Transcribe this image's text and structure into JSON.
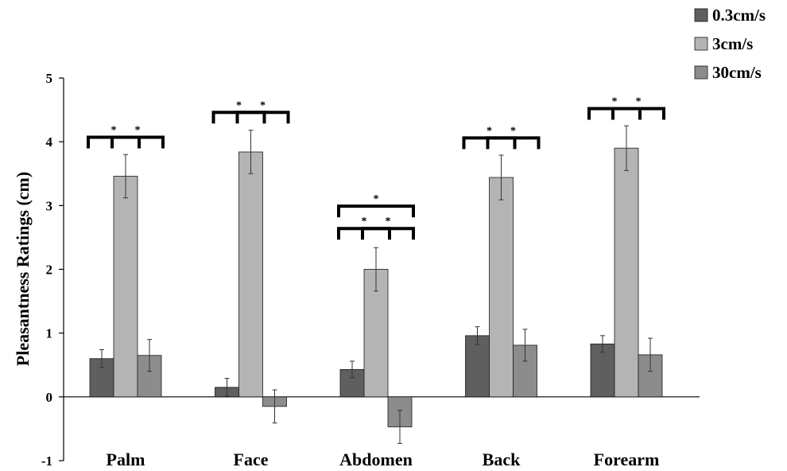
{
  "chart_data": {
    "type": "bar",
    "title": "",
    "xlabel": "",
    "ylabel": "Pleasantness Ratings (cm)",
    "ylim": [
      -1,
      5
    ],
    "yticks": [
      "-1",
      "0",
      "1",
      "2",
      "3",
      "4",
      "5"
    ],
    "categories": [
      "Palm",
      "Face",
      "Abdomen",
      "Back",
      "Forearm"
    ],
    "legend_position": "top-right",
    "grid": false,
    "series": [
      {
        "name": "0.3cm/s",
        "color": "#5f5f5f",
        "values": [
          0.6,
          0.15,
          0.43,
          0.96,
          0.83
        ],
        "errors": [
          0.14,
          0.14,
          0.13,
          0.14,
          0.13
        ]
      },
      {
        "name": "3cm/s",
        "color": "#b4b4b4",
        "values": [
          3.46,
          3.84,
          2.0,
          3.44,
          3.9
        ],
        "errors": [
          0.34,
          0.34,
          0.34,
          0.35,
          0.35
        ]
      },
      {
        "name": "30cm/s",
        "color": "#8c8c8c",
        "values": [
          0.65,
          -0.15,
          -0.47,
          0.81,
          0.66
        ],
        "errors": [
          0.25,
          0.26,
          0.26,
          0.25,
          0.26
        ]
      }
    ],
    "significance": [
      {
        "category": 0,
        "from": 0,
        "to": 1,
        "y": 4.07,
        "label": "*"
      },
      {
        "category": 0,
        "from": 1,
        "to": 2,
        "y": 4.07,
        "label": "*"
      },
      {
        "category": 1,
        "from": 0,
        "to": 1,
        "y": 4.46,
        "label": "*"
      },
      {
        "category": 1,
        "from": 1,
        "to": 2,
        "y": 4.46,
        "label": "*"
      },
      {
        "category": 2,
        "from": 0,
        "to": 2,
        "y": 2.99,
        "label": "*"
      },
      {
        "category": 2,
        "from": 0,
        "to": 1,
        "y": 2.64,
        "label": "*"
      },
      {
        "category": 2,
        "from": 1,
        "to": 2,
        "y": 2.64,
        "label": "*"
      },
      {
        "category": 3,
        "from": 0,
        "to": 1,
        "y": 4.06,
        "label": "*"
      },
      {
        "category": 3,
        "from": 1,
        "to": 2,
        "y": 4.06,
        "label": "*"
      },
      {
        "category": 4,
        "from": 0,
        "to": 1,
        "y": 4.52,
        "label": "*"
      },
      {
        "category": 4,
        "from": 1,
        "to": 2,
        "y": 4.52,
        "label": "*"
      }
    ]
  }
}
